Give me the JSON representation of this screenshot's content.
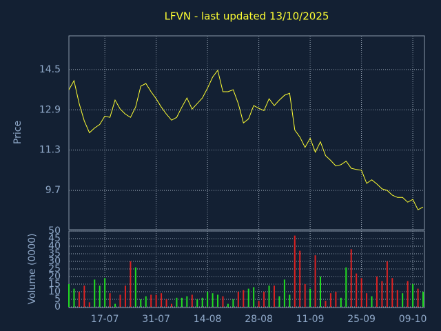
{
  "chart_data": {
    "type": "line",
    "title": "LFVN - last updated 13/10/2025",
    "ylabel": "Price",
    "color": "#ffff33",
    "categories": [
      null,
      null,
      null,
      null,
      null,
      null,
      null,
      "17-07",
      null,
      null,
      null,
      null,
      null,
      null,
      null,
      null,
      null,
      "31-07",
      null,
      null,
      null,
      null,
      null,
      null,
      null,
      null,
      null,
      "14-08",
      null,
      null,
      null,
      null,
      null,
      null,
      null,
      null,
      null,
      "28-08",
      null,
      null,
      null,
      null,
      null,
      null,
      null,
      null,
      null,
      "11-09",
      null,
      null,
      null,
      null,
      null,
      null,
      null,
      null,
      null,
      "25-09",
      null,
      null,
      null,
      null,
      null,
      null,
      null,
      null,
      null,
      "09-10",
      null,
      null
    ],
    "values": [
      13.7,
      14.06,
      13.15,
      12.46,
      11.99,
      12.18,
      12.32,
      12.65,
      12.6,
      13.29,
      12.93,
      12.73,
      12.6,
      13.01,
      13.84,
      13.95,
      13.62,
      13.34,
      13.01,
      12.73,
      12.49,
      12.6,
      13.01,
      13.37,
      12.93,
      13.15,
      13.37,
      13.76,
      14.2,
      14.47,
      13.62,
      13.62,
      13.7,
      13.15,
      12.38,
      12.54,
      13.07,
      12.96,
      12.87,
      13.34,
      13.07,
      13.29,
      13.48,
      13.56,
      12.1,
      11.82,
      11.41,
      11.77,
      11.22,
      11.63,
      11.08,
      10.89,
      10.67,
      10.72,
      10.86,
      10.58,
      10.53,
      10.5,
      9.98,
      10.12,
      9.95,
      9.76,
      9.7,
      9.51,
      9.42,
      9.42,
      9.23,
      9.34,
      8.93,
      9.04
    ],
    "ylim": [
      8.14,
      15.84
    ],
    "yticks": [
      9.7,
      11.3,
      12.9,
      14.5
    ],
    "grid": true,
    "volume": {
      "type": "bar",
      "ylabel": "Volume (0000)",
      "up_color": "#22dd22",
      "down_color": "#dd2222",
      "values": [
        15,
        12,
        10,
        14,
        3,
        18,
        14,
        19,
        9,
        2,
        8,
        14,
        30,
        26,
        5,
        7,
        8,
        8,
        9,
        5,
        2,
        6,
        6,
        7,
        8,
        5,
        6,
        10,
        9,
        8,
        7,
        2,
        5,
        10,
        11,
        12,
        13,
        4,
        10,
        14,
        14,
        7,
        18,
        8,
        47,
        37,
        15,
        12,
        34,
        20,
        4,
        9,
        10,
        6,
        26,
        38,
        22,
        19,
        9,
        7,
        20,
        17,
        30,
        19,
        11,
        9,
        17,
        15,
        12,
        10
      ],
      "ylim": [
        0,
        50
      ],
      "yticks": [
        0,
        5,
        10,
        15,
        20,
        25,
        30,
        35,
        40,
        45,
        50
      ]
    }
  }
}
